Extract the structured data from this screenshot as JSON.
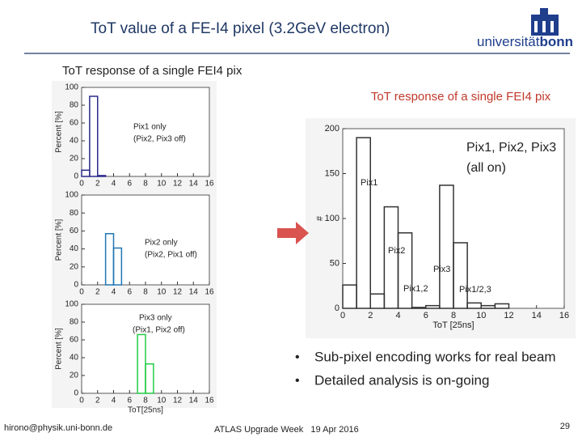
{
  "slide": {
    "title": "ToT value of a FE-I4 pixel (3.2GeV electron)",
    "logo": "universität",
    "logo_bold": "bonn",
    "left_heading": "ToT response of a single FEI4 pix",
    "bullets": [
      "Sub-pixel encoding works for real beam",
      "Detailed analysis is on-going"
    ],
    "footer_left": "hirono@physik.uni-bonn.de",
    "footer_center": "ATLAS Upgrade Week   19 Apr 2016",
    "page": "29"
  },
  "chart_data": [
    {
      "type": "histogram",
      "ylabel": "Percent [%]",
      "bins": [
        0,
        1,
        2,
        3
      ],
      "values": [
        7,
        90,
        1
      ],
      "color": "#2b2b8c",
      "xlim": [
        0,
        16
      ],
      "xticks": [
        0,
        2,
        4,
        6,
        8,
        10,
        12,
        14,
        16
      ],
      "ylim": [
        0,
        100
      ],
      "yticks": [
        0,
        20,
        40,
        60,
        80,
        100
      ],
      "annotations": [
        "Pix1 only",
        "(Pix2, Pix3 off)"
      ]
    },
    {
      "type": "histogram",
      "ylabel": "Percent [%]",
      "bins": [
        3,
        4,
        5
      ],
      "values": [
        57,
        41
      ],
      "color": "#1f77b4",
      "xlim": [
        0,
        16
      ],
      "xticks": [
        0,
        2,
        4,
        6,
        8,
        10,
        12,
        14,
        16
      ],
      "ylim": [
        0,
        100
      ],
      "yticks": [
        0,
        20,
        40,
        60,
        80,
        100
      ],
      "annotations": [
        "Pix2 only",
        "(Pix2, Pix1 off)"
      ]
    },
    {
      "type": "histogram",
      "ylabel": "Percent [%]",
      "xlabel": "ToT[25ns]",
      "bins": [
        7,
        8,
        9
      ],
      "values": [
        66,
        33
      ],
      "color": "#22cc44",
      "xlim": [
        0,
        16
      ],
      "xticks": [
        0,
        2,
        4,
        6,
        8,
        10,
        12,
        14,
        16
      ],
      "ylim": [
        0,
        100
      ],
      "yticks": [
        0,
        20,
        40,
        60,
        80,
        100
      ],
      "annotations": [
        "Pix3 only",
        "(Pix1, Pix2 off)"
      ]
    },
    {
      "type": "histogram",
      "title": "ToT response of a single FEI4 pix",
      "ylabel": "#",
      "xlabel": "ToT [25ns]",
      "bins": [
        0,
        1,
        2,
        3,
        4,
        5,
        6,
        7,
        8,
        9,
        10,
        11,
        12
      ],
      "values": [
        26,
        190,
        16,
        113,
        84,
        1,
        3,
        137,
        73,
        6,
        3,
        5
      ],
      "color": "#333333",
      "xlim": [
        0,
        16
      ],
      "xticks": [
        0,
        2,
        4,
        6,
        8,
        10,
        12,
        14,
        16
      ],
      "ylim": [
        0,
        200
      ],
      "yticks": [
        0,
        50,
        100,
        150,
        200
      ],
      "annotations": [
        "Pix1",
        "Pix2",
        "Pix3",
        "Pix1,2",
        "Pix1/2,3",
        "Pix1, Pix2, Pix3",
        "(all on)"
      ]
    }
  ]
}
